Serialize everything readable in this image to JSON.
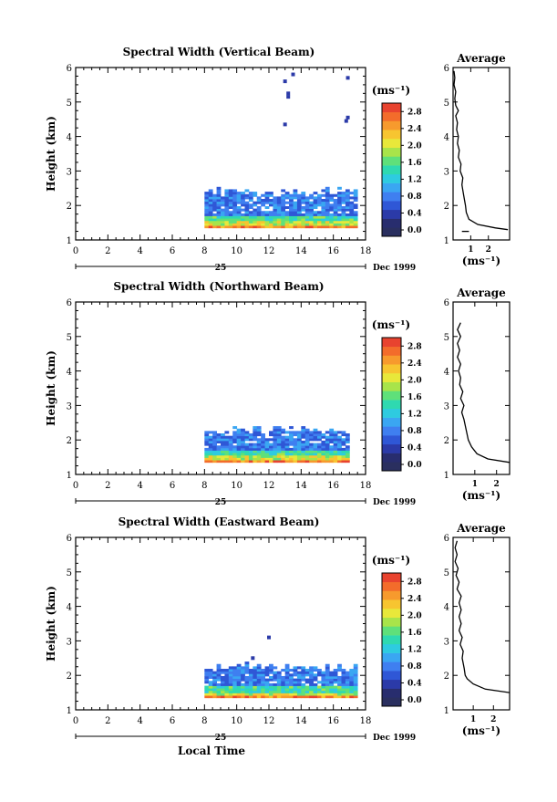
{
  "chart_data": [
    {
      "type": "heatmap",
      "title": "Spectral Width (Vertical Beam)",
      "ylabel": "Height (km)",
      "x_ticks": [
        "0",
        "2",
        "4",
        "6",
        "8",
        "10",
        "12",
        "14",
        "16",
        "18"
      ],
      "y_ticks": [
        "1",
        "2",
        "3",
        "4",
        "5",
        "6"
      ],
      "xlim": [
        0,
        18
      ],
      "ylim": [
        1,
        6
      ],
      "date_day": "25",
      "date_month_year": "Dec 1999",
      "xlabel": "",
      "data_time_range": [
        8.0,
        17.5
      ],
      "echo_top_km": 2.5,
      "echo_bottom_km": 1.35,
      "isolated_points": [
        [
          13.0,
          5.6
        ],
        [
          13.5,
          5.8
        ],
        [
          13.2,
          5.25
        ],
        [
          13.2,
          5.15
        ],
        [
          13.0,
          4.35
        ],
        [
          16.8,
          4.45
        ],
        [
          16.9,
          4.55
        ],
        [
          16.9,
          5.7
        ]
      ],
      "colorbar": {
        "unit": "(ms⁻¹)",
        "ticks": [
          "0.0",
          "0.4",
          "0.8",
          "1.2",
          "1.6",
          "2.0",
          "2.4",
          "2.8"
        ],
        "range": [
          0,
          3.0
        ]
      },
      "average": {
        "title": "Average",
        "xlabel": "(ms⁻¹)",
        "x_ticks": [
          "1",
          "2"
        ],
        "y_ticks": [
          "1",
          "2",
          "3",
          "4",
          "5",
          "6"
        ],
        "xlim": [
          0,
          3.2
        ],
        "ylim": [
          1,
          6
        ],
        "profile": [
          [
            3.1,
            1.3
          ],
          [
            2.4,
            1.35
          ],
          [
            1.4,
            1.45
          ],
          [
            0.9,
            1.6
          ],
          [
            0.75,
            1.8
          ],
          [
            0.7,
            2.0
          ],
          [
            0.6,
            2.3
          ],
          [
            0.5,
            2.6
          ],
          [
            0.55,
            2.8
          ],
          [
            0.4,
            3.0
          ],
          [
            0.45,
            3.2
          ],
          [
            0.3,
            3.4
          ],
          [
            0.35,
            3.6
          ],
          [
            0.25,
            3.8
          ],
          [
            0.3,
            4.0
          ],
          [
            0.2,
            4.2
          ],
          [
            0.25,
            4.4
          ],
          [
            0.15,
            4.6
          ],
          [
            0.3,
            4.75
          ],
          [
            0.15,
            4.9
          ],
          [
            0.1,
            5.1
          ],
          [
            0.15,
            5.3
          ],
          [
            0.05,
            5.5
          ],
          [
            0.1,
            5.7
          ],
          [
            0.05,
            5.9
          ]
        ],
        "profile_stub": [
          [
            0.5,
            1.25
          ],
          [
            0.9,
            1.25
          ]
        ]
      }
    },
    {
      "type": "heatmap",
      "title": "Spectral Width (Northward Beam)",
      "ylabel": "Height (km)",
      "x_ticks": [
        "0",
        "2",
        "4",
        "6",
        "8",
        "10",
        "12",
        "14",
        "16",
        "18"
      ],
      "y_ticks": [
        "1",
        "2",
        "3",
        "4",
        "5",
        "6"
      ],
      "xlim": [
        0,
        18
      ],
      "ylim": [
        1,
        6
      ],
      "date_day": "25",
      "date_month_year": "Dec 1999",
      "xlabel": "",
      "data_time_range": [
        8.0,
        17.0
      ],
      "echo_top_km": 2.4,
      "echo_bottom_km": 1.35,
      "isolated_points": [],
      "colorbar": {
        "unit": "(ms⁻¹)",
        "ticks": [
          "0.0",
          "0.4",
          "0.8",
          "1.2",
          "1.6",
          "2.0",
          "2.4",
          "2.8"
        ],
        "range": [
          0,
          3.0
        ]
      },
      "average": {
        "title": "Average",
        "xlabel": "(ms⁻¹)",
        "x_ticks": [
          "1",
          "2"
        ],
        "y_ticks": [
          "1",
          "2",
          "3",
          "4",
          "5",
          "6"
        ],
        "xlim": [
          0,
          2.6
        ],
        "ylim": [
          1,
          6
        ],
        "profile": [
          [
            2.6,
            1.35
          ],
          [
            1.6,
            1.45
          ],
          [
            1.1,
            1.6
          ],
          [
            0.85,
            1.8
          ],
          [
            0.7,
            2.0
          ],
          [
            0.6,
            2.3
          ],
          [
            0.5,
            2.6
          ],
          [
            0.4,
            2.8
          ],
          [
            0.5,
            3.0
          ],
          [
            0.35,
            3.2
          ],
          [
            0.45,
            3.4
          ],
          [
            0.3,
            3.6
          ],
          [
            0.35,
            3.8
          ],
          [
            0.25,
            4.0
          ],
          [
            0.35,
            4.2
          ],
          [
            0.2,
            4.4
          ],
          [
            0.3,
            4.6
          ],
          [
            0.2,
            4.8
          ],
          [
            0.35,
            5.0
          ],
          [
            0.2,
            5.2
          ],
          [
            0.35,
            5.4
          ]
        ],
        "profile_stub": []
      }
    },
    {
      "type": "heatmap",
      "title": "Spectral Width (Eastward Beam)",
      "ylabel": "Height (km)",
      "x_ticks": [
        "0",
        "2",
        "4",
        "6",
        "8",
        "10",
        "12",
        "14",
        "16",
        "18"
      ],
      "y_ticks": [
        "1",
        "2",
        "3",
        "4",
        "5",
        "6"
      ],
      "xlim": [
        0,
        18
      ],
      "ylim": [
        1,
        6
      ],
      "date_day": "25",
      "date_month_year": "Dec 1999",
      "xlabel": "Local Time",
      "data_time_range": [
        8.0,
        17.5
      ],
      "echo_top_km": 2.35,
      "echo_bottom_km": 1.35,
      "isolated_points": [
        [
          12.0,
          3.1
        ],
        [
          11.0,
          2.5
        ]
      ],
      "colorbar": {
        "unit": "(ms⁻¹)",
        "ticks": [
          "0.0",
          "0.4",
          "0.8",
          "1.2",
          "1.6",
          "2.0",
          "2.4",
          "2.8"
        ],
        "range": [
          0,
          3.0
        ]
      },
      "average": {
        "title": "Average",
        "xlabel": "(ms⁻¹)",
        "x_ticks": [
          "1",
          "2"
        ],
        "y_ticks": [
          "1",
          "2",
          "3",
          "4",
          "5",
          "6"
        ],
        "xlim": [
          0,
          2.8
        ],
        "ylim": [
          1,
          6
        ],
        "profile": [
          [
            2.8,
            1.5
          ],
          [
            1.6,
            1.6
          ],
          [
            1.0,
            1.75
          ],
          [
            0.7,
            1.9
          ],
          [
            0.6,
            2.0
          ],
          [
            0.55,
            2.2
          ],
          [
            0.45,
            2.5
          ],
          [
            0.5,
            2.7
          ],
          [
            0.35,
            2.9
          ],
          [
            0.45,
            3.1
          ],
          [
            0.3,
            3.3
          ],
          [
            0.4,
            3.5
          ],
          [
            0.3,
            3.7
          ],
          [
            0.4,
            3.9
          ],
          [
            0.3,
            4.1
          ],
          [
            0.4,
            4.3
          ],
          [
            0.2,
            4.5
          ],
          [
            0.3,
            4.7
          ],
          [
            0.15,
            4.9
          ],
          [
            0.25,
            5.1
          ],
          [
            0.1,
            5.3
          ],
          [
            0.2,
            5.5
          ],
          [
            0.1,
            5.7
          ],
          [
            0.2,
            5.9
          ]
        ],
        "profile_stub": []
      }
    }
  ]
}
